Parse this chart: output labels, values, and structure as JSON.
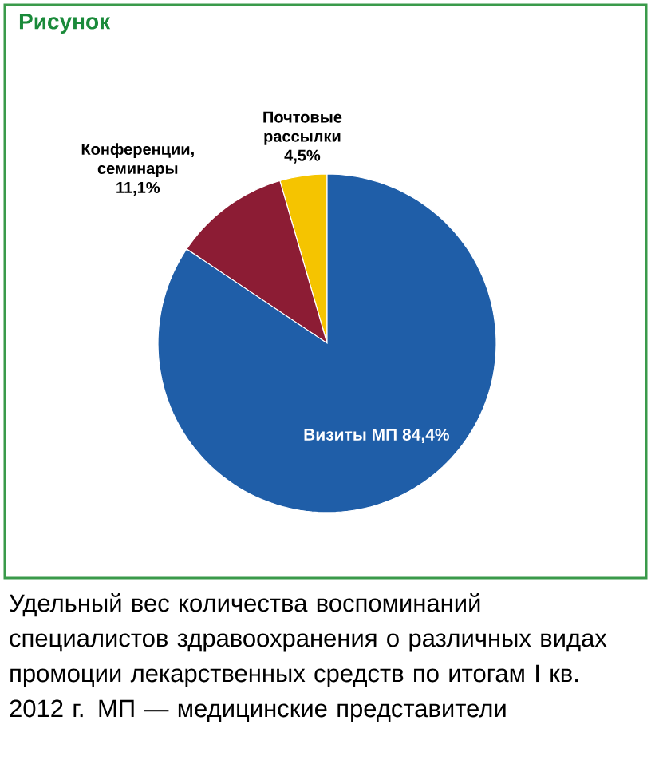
{
  "chart_data": {
    "type": "pie",
    "title": "Рисунок",
    "categories": [
      "Почтовые рассылки",
      "Конференции, семинары",
      "Визиты МП"
    ],
    "values": [
      4.5,
      11.1,
      84.4
    ],
    "colors": [
      "#f5c400",
      "#8c1c34",
      "#1f5ea8"
    ],
    "value_labels": [
      "4,5%",
      "11,1%",
      "84,4%"
    ],
    "annotations": [
      "Удельный вес количества воспоминаний специалистов здравоохранения о различных видах промоции лекарственных средств по итогам I кв. 2012 г. МП — медицинские представители"
    ]
  }
}
